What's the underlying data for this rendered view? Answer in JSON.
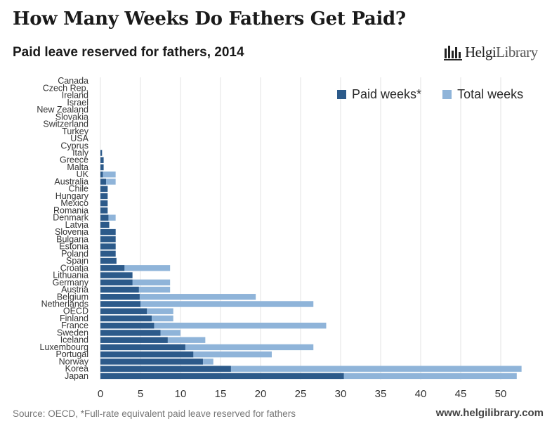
{
  "title": "How Many Weeks Do Fathers Get Paid?",
  "subtitle": "Paid leave reserved for fathers, 2014",
  "logo": {
    "name": "HelgiLibrary",
    "part1": "Helgi",
    "part2": "Library",
    "icon": "bar-chart-logo-icon"
  },
  "legend": {
    "paid": "Paid weeks*",
    "total": "Total weeks"
  },
  "footer": {
    "source": "Source: OECD, *Full-rate equivalent paid leave reserved for fathers",
    "url": "www.helgilibrary.com"
  },
  "colors": {
    "paid": "#2c5a8a",
    "total": "#8fb4d9",
    "grid": "#e3e3e3"
  },
  "chart_data": {
    "type": "bar",
    "orientation": "horizontal",
    "title": "How Many Weeks Do Fathers Get Paid?",
    "subtitle": "Paid leave reserved for fathers, 2014",
    "xlim": [
      0,
      55
    ],
    "xticks": [
      0,
      5,
      10,
      15,
      20,
      25,
      30,
      35,
      40,
      45,
      50
    ],
    "grid": true,
    "legend_position": "top-right",
    "categories": [
      "Canada",
      "Czech Rep.",
      "Ireland",
      "Israel",
      "New Zealand",
      "Slovakia",
      "Switzerland",
      "Turkey",
      "USA",
      "Cyprus",
      "Italy",
      "Greece",
      "Malta",
      "UK",
      "Australia",
      "Chile",
      "Hungary",
      "Mexico",
      "Romania",
      "Denmark",
      "Latvia",
      "Slovenia",
      "Bulgaria",
      "Estonia",
      "Poland",
      "Spain",
      "Croatia",
      "Lithuania",
      "Germany",
      "Austria",
      "Belgium",
      "Netherlands",
      "OECD",
      "Finland",
      "France",
      "Sweden",
      "Iceland",
      "Luxembourg",
      "Portugal",
      "Norway",
      "Korea",
      "Japan"
    ],
    "series": [
      {
        "name": "Paid weeks*",
        "values": [
          0,
          0,
          0,
          0,
          0,
          0,
          0,
          0,
          0,
          0,
          0.2,
          0.4,
          0.4,
          0.3,
          0.7,
          0.9,
          0.9,
          0.9,
          0.9,
          1.0,
          1.1,
          1.9,
          1.9,
          1.9,
          1.9,
          2.0,
          3.0,
          4.0,
          4.0,
          4.8,
          4.9,
          5.0,
          5.8,
          6.4,
          6.7,
          7.5,
          8.4,
          10.6,
          11.6,
          12.8,
          16.3,
          30.4
        ]
      },
      {
        "name": "Total weeks",
        "values": [
          0,
          0,
          0,
          0,
          0,
          0,
          0,
          0,
          0,
          0,
          0.2,
          0.4,
          0.4,
          1.9,
          1.9,
          0.9,
          0.9,
          0.9,
          0.9,
          1.9,
          1.1,
          1.9,
          1.9,
          1.9,
          1.9,
          2.0,
          8.7,
          4.0,
          8.7,
          8.7,
          19.4,
          26.6,
          9.1,
          9.1,
          28.2,
          10.0,
          13.1,
          26.6,
          21.4,
          14.1,
          52.6,
          52.0
        ]
      }
    ]
  }
}
